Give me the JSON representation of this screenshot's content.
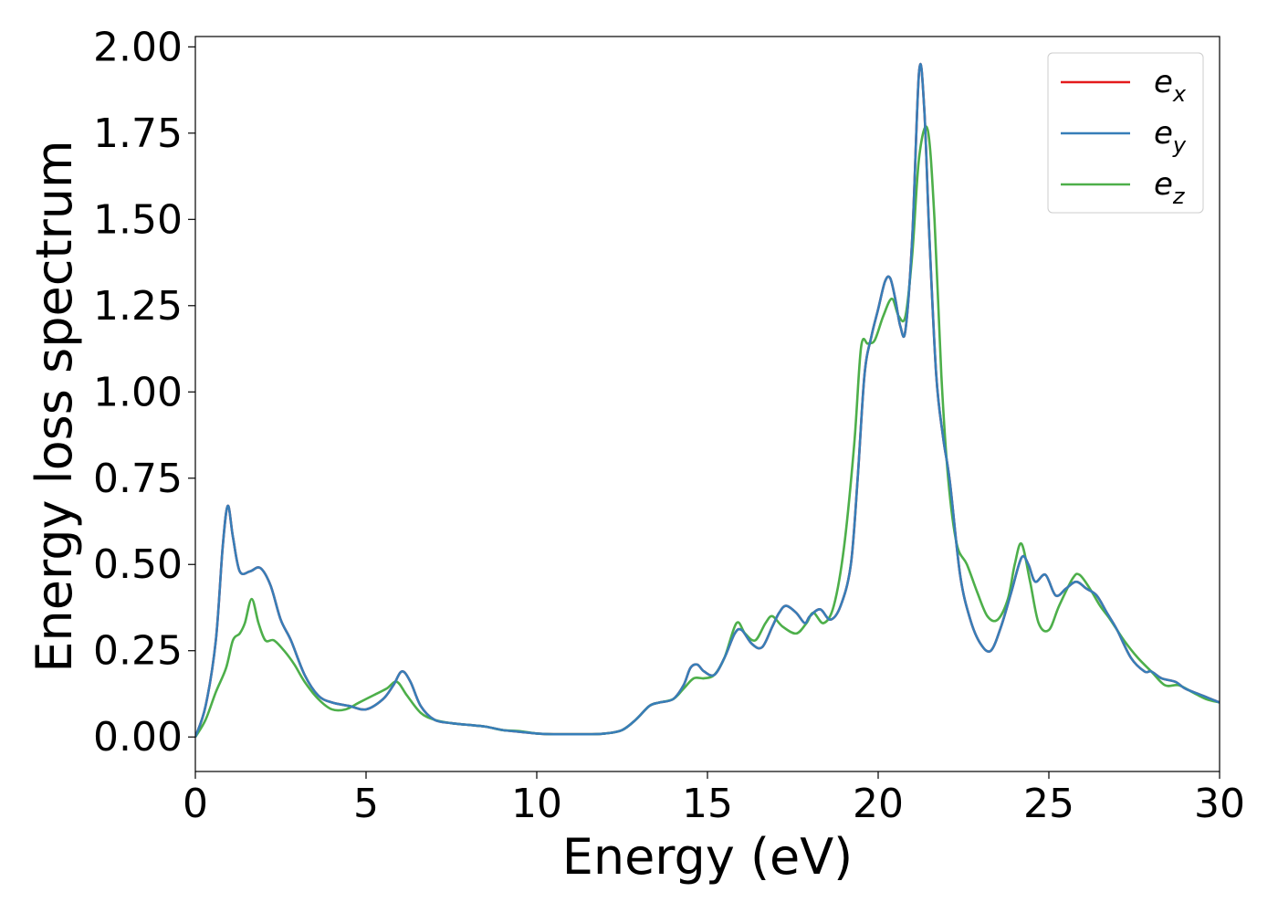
{
  "chart_data": {
    "type": "line",
    "title": "",
    "xlabel": "Energy (eV)",
    "ylabel": "Energy loss spectrum",
    "xlim": [
      0,
      30
    ],
    "ylim": [
      -0.1,
      2.03
    ],
    "xticks": [
      0,
      5,
      10,
      15,
      20,
      25,
      30
    ],
    "xtick_labels": [
      "0",
      "5",
      "10",
      "15",
      "20",
      "25",
      "30"
    ],
    "yticks": [
      0,
      0.25,
      0.5,
      0.75,
      1.0,
      1.25,
      1.5,
      1.75,
      2.0
    ],
    "ytick_labels": [
      "0.00",
      "0.25",
      "0.50",
      "0.75",
      "1.00",
      "1.25",
      "1.50",
      "1.75",
      "2.00"
    ],
    "grid": false,
    "legend_position": "top-right",
    "series": [
      {
        "name": "e",
        "subscript": "x",
        "color": "#e41a1c",
        "x": [
          0,
          0.3,
          0.6,
          0.8,
          0.95,
          1.1,
          1.3,
          1.6,
          1.9,
          2.2,
          2.5,
          2.8,
          3.2,
          3.6,
          4.0,
          4.5,
          5.0,
          5.5,
          5.8,
          6.05,
          6.3,
          6.6,
          7.0,
          7.5,
          8.0,
          8.5,
          9.0,
          9.5,
          10.0,
          10.5,
          11.0,
          11.5,
          12.0,
          12.5,
          12.9,
          13.3,
          13.6,
          14.0,
          14.3,
          14.5,
          14.7,
          14.9,
          15.2,
          15.5,
          15.8,
          16.0,
          16.3,
          16.6,
          16.9,
          17.1,
          17.3,
          17.6,
          17.85,
          18.0,
          18.3,
          18.6,
          18.9,
          19.2,
          19.4,
          19.6,
          19.8,
          20.0,
          20.2,
          20.35,
          20.5,
          20.65,
          20.8,
          21.0,
          21.2,
          21.35,
          21.5,
          21.7,
          21.9,
          22.1,
          22.4,
          22.7,
          23.0,
          23.3,
          23.6,
          23.9,
          24.2,
          24.4,
          24.6,
          24.9,
          25.2,
          25.5,
          25.8,
          26.1,
          26.4,
          26.7,
          27.0,
          27.4,
          27.8,
          28.0,
          28.3,
          28.7,
          29.0,
          29.5,
          30.0
        ],
        "y": [
          0.0,
          0.09,
          0.28,
          0.55,
          0.67,
          0.58,
          0.48,
          0.48,
          0.49,
          0.44,
          0.34,
          0.28,
          0.18,
          0.12,
          0.1,
          0.09,
          0.08,
          0.11,
          0.15,
          0.19,
          0.16,
          0.09,
          0.05,
          0.04,
          0.035,
          0.03,
          0.02,
          0.015,
          0.01,
          0.008,
          0.008,
          0.008,
          0.01,
          0.02,
          0.05,
          0.09,
          0.1,
          0.11,
          0.15,
          0.2,
          0.21,
          0.19,
          0.18,
          0.23,
          0.3,
          0.31,
          0.27,
          0.26,
          0.32,
          0.36,
          0.38,
          0.36,
          0.33,
          0.35,
          0.37,
          0.34,
          0.38,
          0.5,
          0.75,
          1.05,
          1.16,
          1.24,
          1.32,
          1.33,
          1.27,
          1.19,
          1.18,
          1.45,
          1.93,
          1.82,
          1.45,
          1.05,
          0.87,
          0.74,
          0.47,
          0.34,
          0.27,
          0.25,
          0.32,
          0.42,
          0.52,
          0.5,
          0.45,
          0.47,
          0.41,
          0.43,
          0.45,
          0.43,
          0.41,
          0.36,
          0.31,
          0.23,
          0.19,
          0.19,
          0.17,
          0.16,
          0.14,
          0.12,
          0.1
        ]
      },
      {
        "name": "e",
        "subscript": "y",
        "color": "#377eb8",
        "x": [
          0,
          0.3,
          0.6,
          0.8,
          0.95,
          1.1,
          1.3,
          1.6,
          1.9,
          2.2,
          2.5,
          2.8,
          3.2,
          3.6,
          4.0,
          4.5,
          5.0,
          5.5,
          5.8,
          6.05,
          6.3,
          6.6,
          7.0,
          7.5,
          8.0,
          8.5,
          9.0,
          9.5,
          10.0,
          10.5,
          11.0,
          11.5,
          12.0,
          12.5,
          12.9,
          13.3,
          13.6,
          14.0,
          14.3,
          14.5,
          14.7,
          14.9,
          15.2,
          15.5,
          15.8,
          16.0,
          16.3,
          16.6,
          16.9,
          17.1,
          17.3,
          17.6,
          17.85,
          18.0,
          18.3,
          18.6,
          18.9,
          19.2,
          19.4,
          19.6,
          19.8,
          20.0,
          20.2,
          20.35,
          20.5,
          20.65,
          20.8,
          21.0,
          21.2,
          21.35,
          21.5,
          21.7,
          21.9,
          22.1,
          22.4,
          22.7,
          23.0,
          23.3,
          23.6,
          23.9,
          24.2,
          24.4,
          24.6,
          24.9,
          25.2,
          25.5,
          25.8,
          26.1,
          26.4,
          26.7,
          27.0,
          27.4,
          27.8,
          28.0,
          28.3,
          28.7,
          29.0,
          29.5,
          30.0
        ],
        "y": [
          0.0,
          0.09,
          0.28,
          0.55,
          0.67,
          0.58,
          0.48,
          0.48,
          0.49,
          0.44,
          0.34,
          0.28,
          0.18,
          0.12,
          0.1,
          0.09,
          0.08,
          0.11,
          0.15,
          0.19,
          0.16,
          0.09,
          0.05,
          0.04,
          0.035,
          0.03,
          0.02,
          0.015,
          0.01,
          0.008,
          0.008,
          0.008,
          0.01,
          0.02,
          0.05,
          0.09,
          0.1,
          0.11,
          0.15,
          0.2,
          0.21,
          0.19,
          0.18,
          0.23,
          0.3,
          0.31,
          0.27,
          0.26,
          0.32,
          0.36,
          0.38,
          0.36,
          0.33,
          0.35,
          0.37,
          0.34,
          0.38,
          0.5,
          0.75,
          1.05,
          1.16,
          1.24,
          1.32,
          1.33,
          1.27,
          1.19,
          1.18,
          1.45,
          1.93,
          1.82,
          1.45,
          1.05,
          0.87,
          0.74,
          0.47,
          0.34,
          0.27,
          0.25,
          0.32,
          0.42,
          0.52,
          0.5,
          0.45,
          0.47,
          0.41,
          0.43,
          0.45,
          0.43,
          0.41,
          0.36,
          0.31,
          0.23,
          0.19,
          0.19,
          0.17,
          0.16,
          0.14,
          0.12,
          0.1
        ]
      },
      {
        "name": "e",
        "subscript": "z",
        "color": "#4daf4a",
        "x": [
          0,
          0.3,
          0.6,
          0.9,
          1.1,
          1.3,
          1.45,
          1.65,
          1.85,
          2.05,
          2.3,
          2.6,
          2.9,
          3.2,
          3.6,
          4.0,
          4.4,
          4.8,
          5.2,
          5.6,
          5.9,
          6.2,
          6.6,
          7.0,
          7.5,
          8.0,
          8.5,
          9.0,
          9.5,
          10.0,
          10.5,
          11.0,
          11.5,
          12.0,
          12.5,
          12.9,
          13.3,
          13.6,
          14.0,
          14.3,
          14.6,
          14.9,
          15.2,
          15.5,
          15.85,
          16.1,
          16.4,
          16.7,
          16.9,
          17.2,
          17.6,
          17.9,
          18.1,
          18.4,
          18.7,
          19.0,
          19.3,
          19.5,
          19.7,
          19.9,
          20.15,
          20.4,
          20.6,
          20.8,
          21.0,
          21.2,
          21.45,
          21.65,
          21.85,
          22.05,
          22.3,
          22.6,
          22.9,
          23.2,
          23.5,
          23.8,
          24.0,
          24.2,
          24.45,
          24.7,
          25.0,
          25.3,
          25.7,
          25.9,
          26.2,
          26.5,
          26.8,
          27.2,
          27.6,
          28.0,
          28.4,
          28.8,
          29.2,
          29.6,
          30.0
        ],
        "y": [
          0.0,
          0.05,
          0.13,
          0.2,
          0.28,
          0.3,
          0.33,
          0.4,
          0.33,
          0.28,
          0.28,
          0.25,
          0.21,
          0.16,
          0.11,
          0.08,
          0.08,
          0.1,
          0.12,
          0.14,
          0.16,
          0.12,
          0.07,
          0.05,
          0.04,
          0.035,
          0.03,
          0.02,
          0.017,
          0.01,
          0.008,
          0.008,
          0.008,
          0.01,
          0.02,
          0.05,
          0.09,
          0.1,
          0.11,
          0.14,
          0.17,
          0.17,
          0.18,
          0.23,
          0.33,
          0.3,
          0.28,
          0.33,
          0.35,
          0.32,
          0.3,
          0.33,
          0.36,
          0.33,
          0.38,
          0.55,
          0.85,
          1.13,
          1.14,
          1.15,
          1.22,
          1.27,
          1.22,
          1.22,
          1.4,
          1.68,
          1.76,
          1.5,
          1.05,
          0.75,
          0.56,
          0.5,
          0.42,
          0.35,
          0.34,
          0.4,
          0.5,
          0.56,
          0.45,
          0.33,
          0.31,
          0.38,
          0.46,
          0.47,
          0.43,
          0.38,
          0.34,
          0.28,
          0.23,
          0.19,
          0.15,
          0.15,
          0.13,
          0.11,
          0.1
        ]
      }
    ]
  }
}
